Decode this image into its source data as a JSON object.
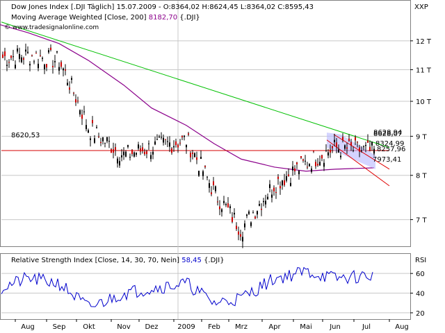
{
  "header": {
    "title_line": "Dow Jones Index [.DJI  Täglich] 15.07.2009 - O:8364,02 H:8624,45 L:8364,02 C:8595,43",
    "ma_line_label": "Moving Average Weighted [Close, 200]",
    "ma_line_value": "8182,70",
    "ma_line_suffix": "{.DJI}",
    "watermark": "© www.tradesignalonline.com",
    "xxp": "XXP"
  },
  "colors": {
    "candle": "#000000",
    "bear": "#cc0000",
    "ma": "#8b008b",
    "trend_green": "#00c000",
    "hline": "#d40000",
    "channel": "#e00000",
    "rsi": "#0000cc",
    "grid": "#c8c8c8",
    "panel_border": "#808080"
  },
  "price_axis": {
    "ticks": [
      {
        "label": "12 T",
        "value": 12000
      },
      {
        "label": "11 T",
        "value": 11000
      },
      {
        "label": "10 T",
        "value": 10000
      },
      {
        "label": "9 T",
        "value": 9000
      },
      {
        "label": "8 T",
        "value": 8000
      },
      {
        "label": "7 T",
        "value": 7000
      }
    ],
    "scale": "log"
  },
  "x_axis": {
    "months": [
      "Aug",
      "Sep",
      "Okt",
      "Nov",
      "Dez",
      "2009",
      "Feb",
      "Mrz",
      "Apr",
      "Mai",
      "Jun",
      "Jul",
      "Aug"
    ]
  },
  "annotations": {
    "hline_label": "8620,53",
    "right_values": [
      "8628,94",
      "8628,07",
      "8324,99",
      "8257,96",
      "7973,41"
    ]
  },
  "rsi_panel": {
    "label": "Relative Strength Index [Close, 14, 30, 70, Nein]",
    "value": "58,45",
    "suffix": "{.DJI}",
    "axis_title": "RSI",
    "ticks": [
      {
        "label": "60",
        "value": 60
      },
      {
        "label": "40",
        "value": 40
      },
      {
        "label": "20",
        "value": 20
      }
    ]
  },
  "chart_data": {
    "type": "line",
    "title": "Dow Jones Index [.DJI Täglich]",
    "x": [
      "2008-07",
      "2008-08",
      "2008-09",
      "2008-10",
      "2008-11",
      "2008-12",
      "2009-01",
      "2009-02",
      "2009-03",
      "2009-04",
      "2009-05",
      "2009-06",
      "2009-07"
    ],
    "series": [
      {
        "name": "Dow Jones Index",
        "values": [
          11400,
          11500,
          11300,
          9200,
          8500,
          8700,
          8900,
          7600,
          6800,
          7800,
          8300,
          8700,
          8595
        ]
      },
      {
        "name": "Moving Average Weighted [Close, 200]",
        "values": [
          12600,
          12300,
          11900,
          11300,
          10500,
          9800,
          9300,
          8800,
          8400,
          8200,
          8100,
          8150,
          8183
        ]
      },
      {
        "name": "Relative Strength Index [Close, 14, 30, 70, Nein]",
        "values": [
          45,
          55,
          50,
          25,
          40,
          45,
          50,
          30,
          35,
          55,
          62,
          55,
          58
        ]
      }
    ],
    "ylim": [
      6500,
      12800
    ],
    "grid": true
  }
}
